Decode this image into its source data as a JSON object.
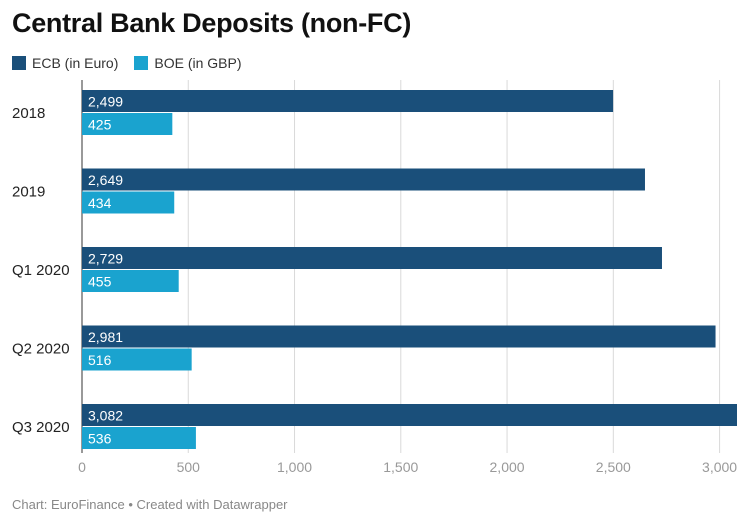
{
  "title": "Central Bank Deposits (non-FC)",
  "footer": "Chart: EuroFinance • Created with Datawrapper",
  "chart_data": {
    "type": "bar",
    "orientation": "horizontal",
    "title": "Central Bank Deposits (non-FC)",
    "categories": [
      "2018",
      "2019",
      "Q1 2020",
      "Q2 2020",
      "Q3 2020"
    ],
    "series": [
      {
        "name": "ECB (in Euro)",
        "color": "#1a4f7a",
        "values": [
          2499,
          2649,
          2729,
          2981,
          3082
        ],
        "labels": [
          "2,499",
          "2,649",
          "2,729",
          "2,981",
          "3,082"
        ]
      },
      {
        "name": "BOE (in GBP)",
        "color": "#1aa3cf",
        "values": [
          425,
          434,
          455,
          516,
          536
        ],
        "labels": [
          "425",
          "434",
          "455",
          "516",
          "536"
        ]
      }
    ],
    "xlim": [
      0,
      3082
    ],
    "xticks": [
      0,
      500,
      1000,
      1500,
      2000,
      2500,
      3000
    ],
    "xtick_labels": [
      "0",
      "500",
      "1,000",
      "1,500",
      "2,000",
      "2,500",
      "3,000"
    ],
    "grid": true,
    "legend": "top-left"
  }
}
